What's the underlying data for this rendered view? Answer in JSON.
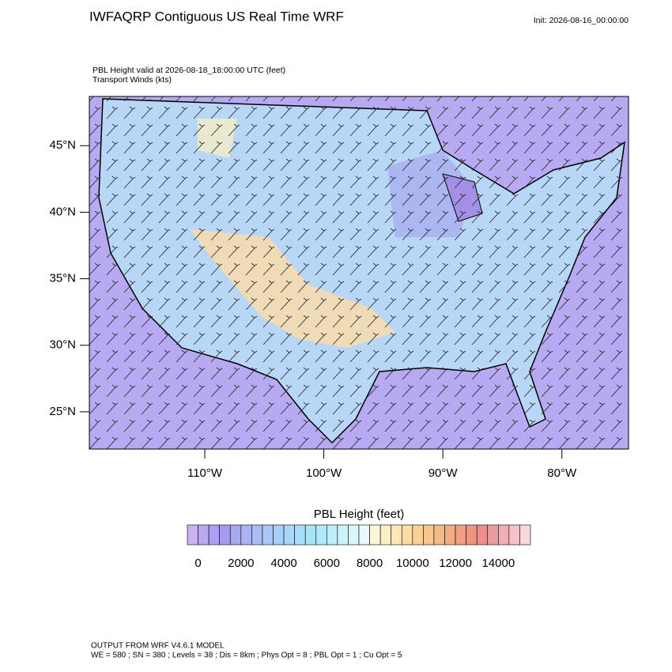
{
  "header": {
    "title": "IWFAQRP Contiguous US Real Time WRF",
    "init": "Init: 2026-08-16_00:00:00",
    "subtitle": "PBL Height valid at 2026-08-18_18:00:00 UTC   (feet)",
    "subtitle2": "Transport Winds   (kts)"
  },
  "map": {
    "xlim": [
      -119.7,
      -74.4
    ],
    "ylim": [
      22.2,
      48.7
    ],
    "xticks": [
      {
        "value": -110,
        "label": "110°W"
      },
      {
        "value": -100,
        "label": "100°W"
      },
      {
        "value": -90,
        "label": "90°W"
      },
      {
        "value": -80,
        "label": "80°W"
      }
    ],
    "yticks": [
      {
        "value": 25,
        "label": "25°N"
      },
      {
        "value": 30,
        "label": "30°N"
      },
      {
        "value": 35,
        "label": "35°N"
      },
      {
        "value": 40,
        "label": "40°N"
      },
      {
        "value": 45,
        "label": "45°N"
      }
    ]
  },
  "colorbar": {
    "title": "PBL Height  (feet)",
    "range": [
      -500,
      15500
    ],
    "ticks": [
      0,
      2000,
      4000,
      6000,
      8000,
      10000,
      12000,
      14000
    ],
    "colors": [
      "#c9b3f5",
      "#bba8f2",
      "#ae9ff0",
      "#a59cef",
      "#a6a8f0",
      "#aab4f2",
      "#aabef5",
      "#a9c7f7",
      "#a8cff7",
      "#a8d7f8",
      "#a6def8",
      "#a8e4f8",
      "#b0e8f8",
      "#bdeefa",
      "#cbf2fb",
      "#dbf6fc",
      "#eaf9fd",
      "#fbf6d8",
      "#fcefc5",
      "#fce6b3",
      "#fbdca3",
      "#f9d196",
      "#f7c68c",
      "#f5b985",
      "#f4ab80",
      "#f39e80",
      "#f19383",
      "#ee8f8f",
      "#ec9ba2",
      "#f0aeb6",
      "#f4c3c9",
      "#f8d8dc"
    ]
  },
  "footer": {
    "line1": "OUTPUT FROM WRF V4.6.1 MODEL",
    "line2": "WE = 580 ; SN = 380 ; Levels = 38 ; Dis = 8km ; Phys Opt = 8 ; PBL Opt = 1 ; Cu Opt = 5"
  }
}
